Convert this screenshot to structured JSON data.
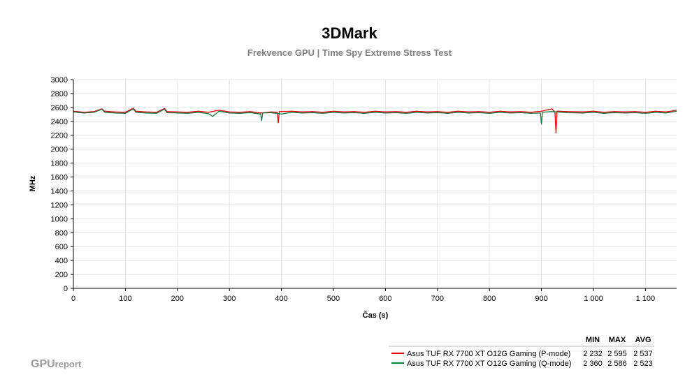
{
  "brand": {
    "primary": "GPU",
    "secondary": "report"
  },
  "chart_data": {
    "type": "line",
    "title": "3DMark",
    "subtitle": "Frekvence GPU | Time Spy Extreme Stress Test",
    "xlabel": "Čas (s)",
    "ylabel": "MHz",
    "xlim": [
      0,
      1160
    ],
    "ylim": [
      0,
      3000
    ],
    "x_ticks": [
      0,
      100,
      200,
      300,
      400,
      500,
      600,
      700,
      800,
      900,
      1000,
      1100
    ],
    "x_tick_labels": [
      "0",
      "100",
      "200",
      "300",
      "400",
      "500",
      "600",
      "700",
      "800",
      "900",
      "1 000",
      "1 100"
    ],
    "y_ticks": [
      0,
      200,
      400,
      600,
      800,
      1000,
      1200,
      1400,
      1600,
      1800,
      2000,
      2200,
      2400,
      2600,
      2800,
      3000
    ],
    "y_tick_labels": [
      "0",
      "200",
      "400",
      "600",
      "800",
      "1000",
      "1200",
      "1400",
      "1600",
      "1800",
      "2000",
      "2200",
      "2400",
      "2600",
      "2800",
      "3000"
    ],
    "grid": true,
    "legend": {
      "placement": "bottom-right",
      "headers": [
        "MIN",
        "MAX",
        "AVG"
      ]
    },
    "series": [
      {
        "name": "Asus TUF RX 7700 XT O12G Gaming (P-mode)",
        "color": "#e8000b",
        "min": "2 232",
        "max": "2 595",
        "avg": "2 537",
        "x": [
          0,
          20,
          40,
          55,
          60,
          80,
          100,
          115,
          120,
          140,
          160,
          175,
          180,
          200,
          220,
          240,
          260,
          280,
          300,
          320,
          340,
          360,
          380,
          392,
          394,
          396,
          420,
          440,
          460,
          480,
          500,
          520,
          540,
          560,
          580,
          600,
          620,
          640,
          660,
          680,
          700,
          720,
          740,
          760,
          780,
          800,
          820,
          840,
          860,
          880,
          900,
          920,
          926,
          928,
          930,
          950,
          980,
          1000,
          1020,
          1040,
          1060,
          1080,
          1100,
          1120,
          1140,
          1160
        ],
        "y": [
          2545,
          2530,
          2540,
          2580,
          2545,
          2535,
          2530,
          2590,
          2545,
          2535,
          2530,
          2585,
          2540,
          2535,
          2530,
          2545,
          2530,
          2560,
          2535,
          2530,
          2540,
          2520,
          2535,
          2530,
          2380,
          2540,
          2545,
          2535,
          2540,
          2530,
          2545,
          2535,
          2540,
          2530,
          2545,
          2535,
          2540,
          2530,
          2545,
          2535,
          2540,
          2530,
          2545,
          2535,
          2540,
          2530,
          2545,
          2535,
          2540,
          2530,
          2545,
          2580,
          2535,
          2232,
          2545,
          2540,
          2535,
          2545,
          2530,
          2540,
          2535,
          2540,
          2530,
          2545,
          2535,
          2560
        ]
      },
      {
        "name": "Asus TUF RX 7700 XT O12G Gaming (Q-mode)",
        "color": "#127a3c",
        "min": "2 360",
        "max": "2 586",
        "avg": "2 523",
        "x": [
          0,
          20,
          40,
          55,
          60,
          80,
          100,
          115,
          120,
          140,
          160,
          175,
          180,
          200,
          220,
          240,
          260,
          268,
          280,
          300,
          320,
          340,
          360,
          362,
          364,
          380,
          400,
          420,
          440,
          460,
          480,
          500,
          520,
          540,
          560,
          580,
          600,
          620,
          640,
          660,
          680,
          700,
          720,
          740,
          760,
          780,
          800,
          820,
          840,
          860,
          880,
          898,
          900,
          902,
          920,
          950,
          980,
          1000,
          1020,
          1040,
          1060,
          1080,
          1100,
          1120,
          1140,
          1160
        ],
        "y": [
          2535,
          2520,
          2530,
          2575,
          2530,
          2520,
          2515,
          2580,
          2530,
          2520,
          2515,
          2575,
          2525,
          2520,
          2515,
          2530,
          2510,
          2470,
          2545,
          2520,
          2515,
          2525,
          2505,
          2410,
          2520,
          2525,
          2505,
          2530,
          2520,
          2525,
          2515,
          2530,
          2520,
          2525,
          2515,
          2530,
          2520,
          2525,
          2515,
          2530,
          2520,
          2525,
          2515,
          2530,
          2520,
          2525,
          2515,
          2530,
          2520,
          2525,
          2515,
          2520,
          2360,
          2530,
          2540,
          2525,
          2520,
          2530,
          2515,
          2525,
          2520,
          2525,
          2515,
          2530,
          2520,
          2545
        ]
      }
    ]
  }
}
